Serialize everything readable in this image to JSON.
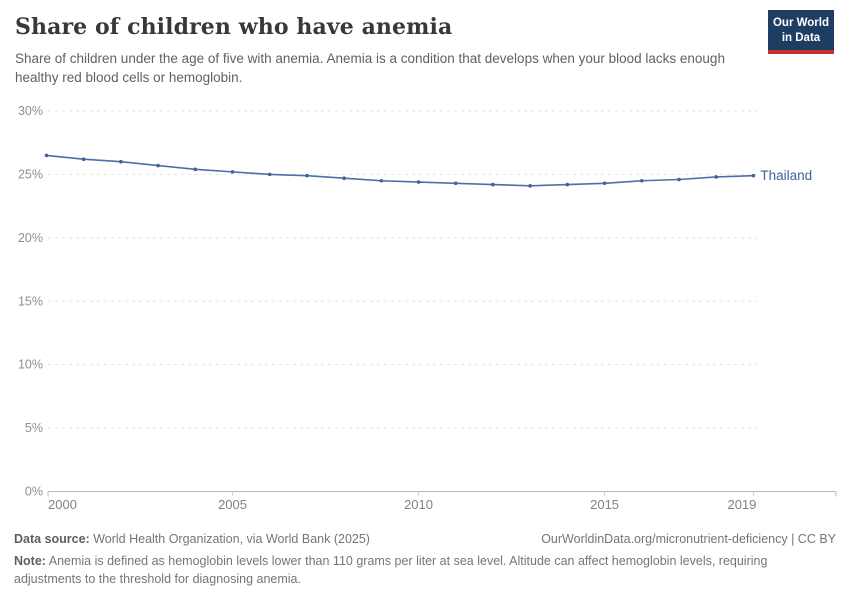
{
  "header": {
    "title": "Share of children who have anemia",
    "subtitle": "Share of children under the age of five with anemia. Anemia is a condition that develops when your blood lacks enough healthy red blood cells or hemoglobin."
  },
  "logo": {
    "line1": "Our World",
    "line2": "in Data"
  },
  "chart_data": {
    "type": "line",
    "title": "Share of children who have anemia",
    "x": [
      2000,
      2001,
      2002,
      2003,
      2004,
      2005,
      2006,
      2007,
      2008,
      2009,
      2010,
      2011,
      2012,
      2013,
      2014,
      2015,
      2016,
      2017,
      2018,
      2019
    ],
    "series": [
      {
        "name": "Thailand",
        "values": [
          26.5,
          26.2,
          26.0,
          25.7,
          25.4,
          25.2,
          25.0,
          24.9,
          24.7,
          24.5,
          24.4,
          24.3,
          24.2,
          24.1,
          24.2,
          24.3,
          24.5,
          24.6,
          24.8,
          24.9
        ]
      }
    ],
    "xlabel": "",
    "ylabel": "",
    "xlim": [
      2000,
      2019
    ],
    "ylim": [
      0,
      30
    ],
    "x_ticks": [
      2000,
      2005,
      2010,
      2015,
      2019
    ],
    "y_ticks": [
      {
        "value": 0,
        "label": "0%"
      },
      {
        "value": 5,
        "label": "5%"
      },
      {
        "value": 10,
        "label": "10%"
      },
      {
        "value": 15,
        "label": "15%"
      },
      {
        "value": 20,
        "label": "20%"
      },
      {
        "value": 25,
        "label": "25%"
      },
      {
        "value": 30,
        "label": "30%"
      }
    ],
    "grid": true,
    "legend_position": "end-of-line"
  },
  "colors": {
    "line": "#4c6fa5",
    "marker": "#40639d",
    "entity_label": "#3d6398",
    "gridline": "#e2e2e2",
    "axis": "#b8b8b8",
    "tick": "#cdcdcd",
    "y_tick_text": "#8f8f8f",
    "x_tick_text": "#828282",
    "logo_bg": "#1d3d63",
    "logo_bar": "#c9322b"
  },
  "footer": {
    "datasource_label": "Data source:",
    "datasource": " World Health Organization, via World Bank (2025)",
    "link": "OurWorldinData.org/micronutrient-deficiency | CC BY",
    "note_label": "Note:",
    "note": " Anemia is defined as hemoglobin levels lower than 110 grams per liter at sea level. Altitude can affect hemoglobin levels, requiring adjustments to the threshold for diagnosing anemia."
  }
}
